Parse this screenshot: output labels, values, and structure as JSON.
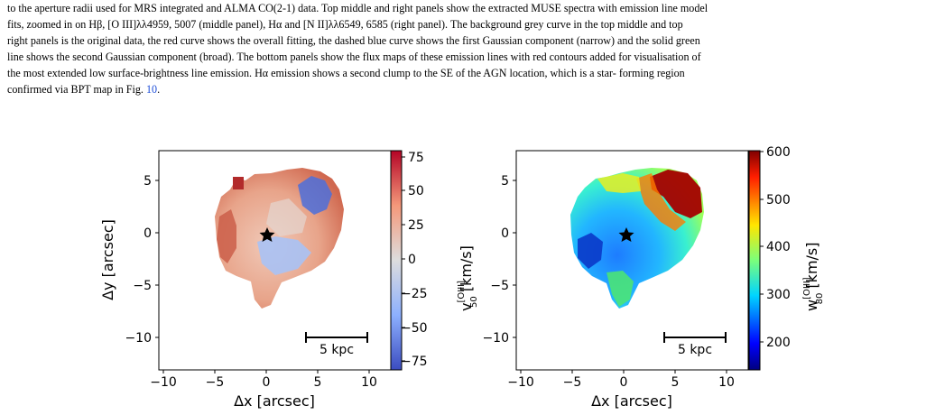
{
  "caption": {
    "lines": [
      "to the aperture radii used for MRS integrated and ALMA CO(2-1) data. Top middle and right panels show the extracted MUSE spectra with emission line model",
      "fits, zoomed in on Hβ, [O III]λλ4959, 5007 (middle panel), Hα and [N II]λλ6549, 6585 (right panel). The background grey curve in the top middle and top",
      "right panels is the original data, the red curve shows the overall fitting, the dashed blue curve shows the first Gaussian component (narrow) and the solid green",
      "line shows the second Gaussian component (broad). The bottom panels show the flux maps of these emission lines with red contours added for visualisation of",
      "the most extended low surface-brightness line emission. Hα emission shows a second clump to the SE of the AGN location, which is a star- forming region"
    ],
    "last_line_prefix": "confirmed via BPT map in Fig. ",
    "fig_ref": "10",
    "last_line_suffix": "."
  },
  "panels": [
    {
      "name": "v50",
      "xlabel": "Δx [arcsec]",
      "ylabel": "Δy [arcsec]",
      "xticks": [
        "−10",
        "−5",
        "0",
        "5",
        "10"
      ],
      "yticks": [
        "5",
        "0",
        "−5",
        "−10"
      ],
      "scalebar_label": "5 kpc",
      "colorbar_label_main": "v",
      "colorbar_label_sup": "[OIII]",
      "colorbar_label_sub": "50",
      "colorbar_label_unit": " [km/s]",
      "colorbar_ticks": [
        "75",
        "50",
        "25",
        "0",
        "−25",
        "−50",
        "−75"
      ],
      "colormap": "coolwarm"
    },
    {
      "name": "w80",
      "xlabel": "Δx [arcsec]",
      "ylabel": "",
      "xticks": [
        "−10",
        "−5",
        "0",
        "5",
        "10"
      ],
      "yticks": [
        "5",
        "0",
        "−5",
        "−10"
      ],
      "scalebar_label": "5 kpc",
      "colorbar_label_main": "w",
      "colorbar_label_sup": "[OIII]",
      "colorbar_label_sub": "80",
      "colorbar_label_unit": " [km/s]",
      "colorbar_ticks": [
        "600",
        "500",
        "400",
        "300",
        "200"
      ],
      "colormap": "jet"
    }
  ],
  "colors": {
    "link": "#1f4fd8",
    "marker": "#000000"
  }
}
